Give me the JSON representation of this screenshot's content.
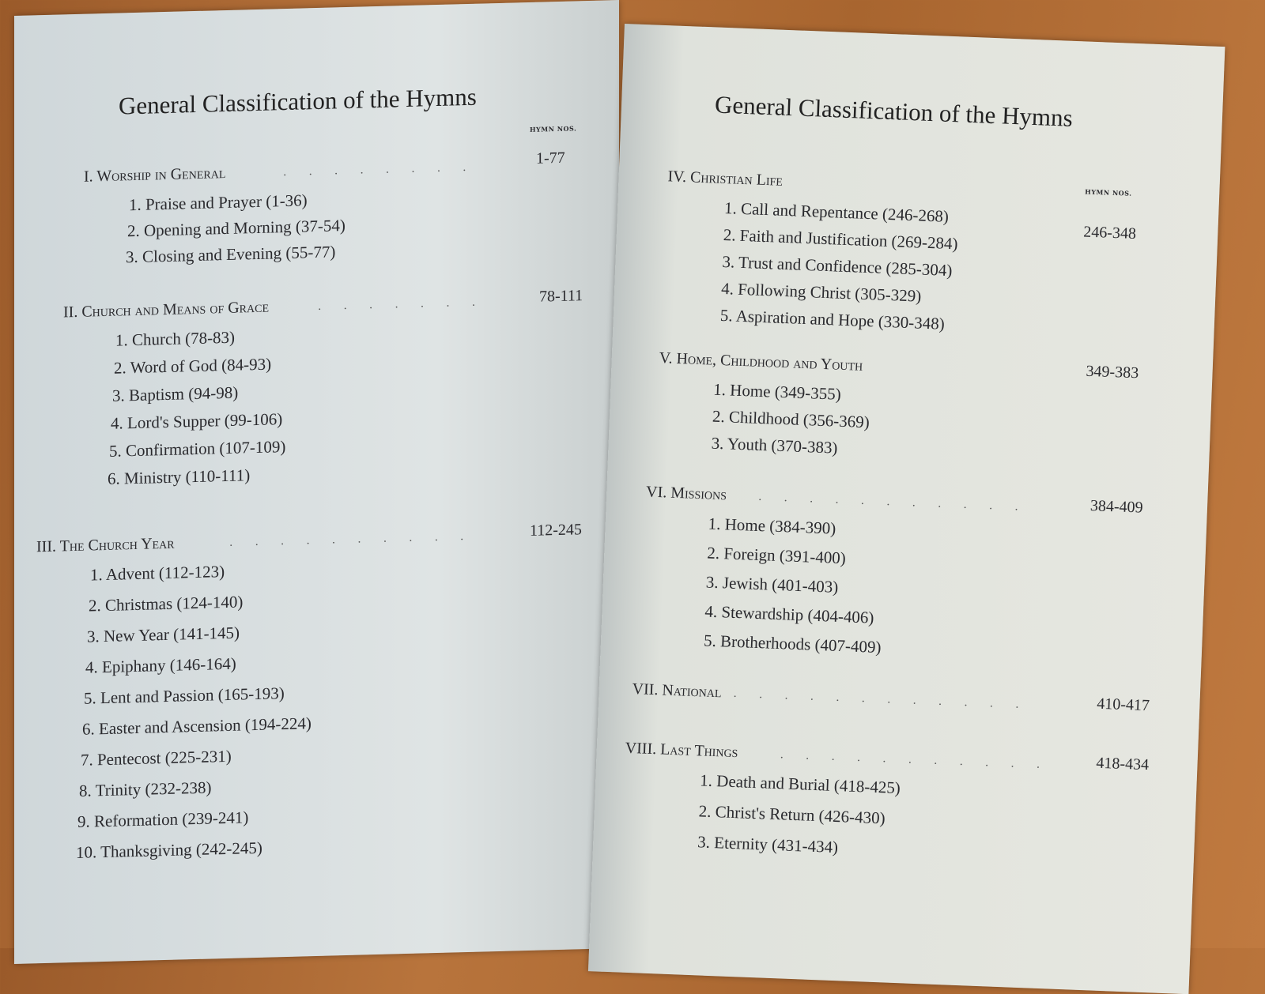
{
  "left": {
    "title": "General Classification of the Hymns",
    "hymn_nos_label": "HYMN NOS.",
    "sections": [
      {
        "label": "I. Worship in General",
        "range": "1-77",
        "items": [
          "1. Praise and Prayer (1-36)",
          "2. Opening and Morning (37-54)",
          "3. Closing and Evening (55-77)"
        ]
      },
      {
        "label": "II. Church and Means of Grace",
        "range": "78-111",
        "items": [
          "1. Church (78-83)",
          "2. Word of God (84-93)",
          "3. Baptism (94-98)",
          "4. Lord's Supper (99-106)",
          "5. Confirmation (107-109)",
          "6. Ministry (110-111)"
        ]
      },
      {
        "label": "III. The Church Year",
        "range": "112-245",
        "items": [
          "1. Advent (112-123)",
          "2. Christmas (124-140)",
          "3. New Year (141-145)",
          "4. Epiphany (146-164)",
          "5. Lent and Passion (165-193)",
          "6. Easter and Ascension (194-224)",
          "7. Pentecost (225-231)",
          "8. Trinity (232-238)",
          "9. Reformation (239-241)",
          "10. Thanksgiving (242-245)"
        ]
      }
    ]
  },
  "right": {
    "title": "General Classification of the Hymns",
    "hymn_nos_label": "HYMN NOS.",
    "sections": [
      {
        "label": "IV. Christian Life",
        "range": "246-348",
        "items": [
          "1. Call and Repentance (246-268)",
          "2. Faith and Justification (269-284)",
          "3. Trust and Confidence (285-304)",
          "4. Following Christ (305-329)",
          "5. Aspiration and Hope (330-348)"
        ]
      },
      {
        "label": "V. Home, Childhood and Youth",
        "range": "349-383",
        "items": [
          "1. Home (349-355)",
          "2. Childhood (356-369)",
          "3. Youth (370-383)"
        ]
      },
      {
        "label": "VI. Missions",
        "range": "384-409",
        "items": [
          "1. Home (384-390)",
          "2. Foreign (391-400)",
          "3. Jewish (401-403)",
          "4. Stewardship (404-406)",
          "5. Brotherhoods (407-409)"
        ]
      },
      {
        "label": "VII. National",
        "range": "410-417",
        "items": []
      },
      {
        "label": "VIII. Last Things",
        "range": "418-434",
        "items": [
          "1. Death and Burial (418-425)",
          "2. Christ's Return (426-430)",
          "3. Eternity (431-434)"
        ]
      }
    ]
  }
}
